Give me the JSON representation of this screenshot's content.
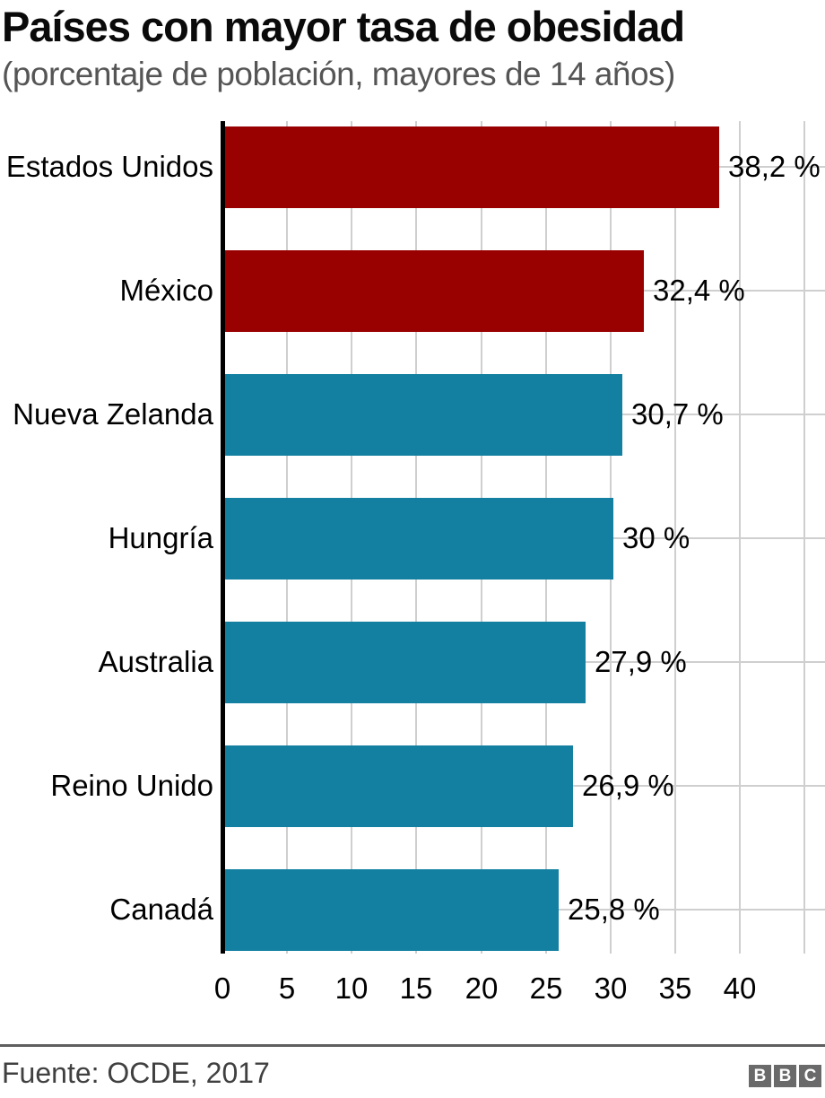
{
  "header": {
    "title": "Países con mayor tasa de obesidad",
    "subtitle": "(porcentaje de población, mayores de 14 años)"
  },
  "footer": {
    "source": "Fuente: OCDE, 2017",
    "logo_letters": [
      "B",
      "B",
      "C"
    ]
  },
  "colors": {
    "highlight_bar": "#990000",
    "default_bar": "#1380A1",
    "gridline": "#cfcfcf",
    "axis": "#000000",
    "title_text": "#0a0a0a",
    "subtitle_text": "#555555",
    "footer_rule": "#5f5f5f",
    "footer_text": "#404040",
    "logo_box": "#6a6a6a"
  },
  "chart_data": {
    "type": "bar",
    "orientation": "horizontal",
    "title": "Países con mayor tasa de obesidad",
    "subtitle": "(porcentaje de población, mayores de 14 años)",
    "categories": [
      "Estados Unidos",
      "México",
      "Nueva Zelanda",
      "Hungría",
      "Australia",
      "Reino Unido",
      "Canadá"
    ],
    "values": [
      38.2,
      32.4,
      30.7,
      30,
      27.9,
      26.9,
      25.8
    ],
    "value_labels": [
      "38,2 %",
      "32,4 %",
      "30,7 %",
      "30 %",
      "27,9 %",
      "26,9 %",
      "25,8 %"
    ],
    "bar_colors": [
      "#990000",
      "#990000",
      "#1380A1",
      "#1380A1",
      "#1380A1",
      "#1380A1",
      "#1380A1"
    ],
    "xlabel": "",
    "ylabel": "",
    "x_ticks": [
      0,
      5,
      10,
      15,
      20,
      25,
      30,
      35,
      40
    ],
    "xlim": [
      0,
      45
    ],
    "grid": true,
    "legend": "none",
    "source": "Fuente: OCDE, 2017"
  }
}
